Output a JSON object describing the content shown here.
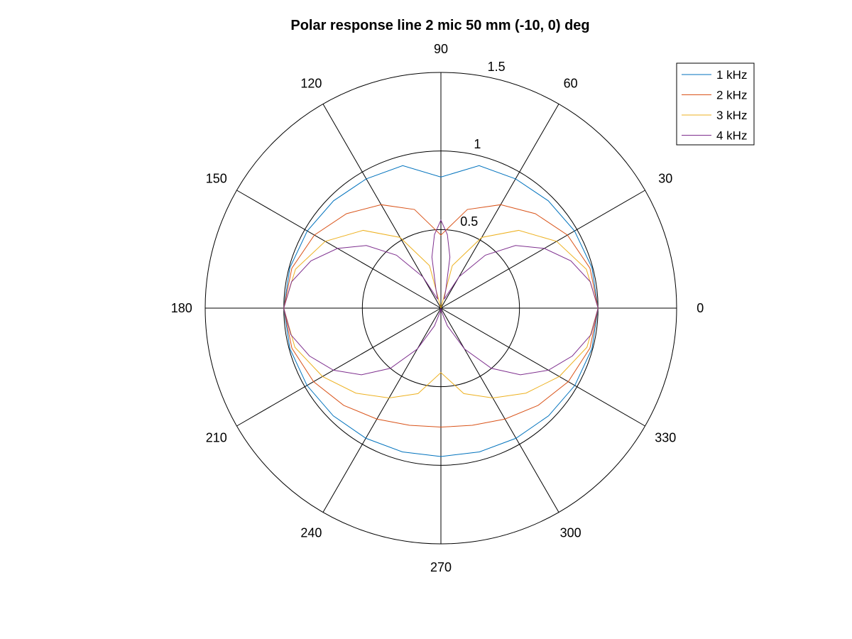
{
  "chart_data": {
    "type": "polar-line",
    "title": "Polar response line 2 mic 50 mm (-10, 0) deg",
    "theta_ticks": [
      0,
      30,
      60,
      90,
      120,
      150,
      180,
      210,
      240,
      270,
      300,
      330
    ],
    "theta_tick_labels": [
      "0",
      "30",
      "60",
      "90",
      "120",
      "150",
      "180",
      "210",
      "240",
      "270",
      "300",
      "330"
    ],
    "rlim": [
      0,
      1.5
    ],
    "r_ticks": [
      0.5,
      1,
      1.5
    ],
    "r_tick_labels": [
      "0.5",
      "1",
      "1.5"
    ],
    "r_tick_angle_deg": 80,
    "grid": true,
    "legend_position": "top-right",
    "theta_unit": "deg",
    "series": [
      {
        "name": "1 kHz",
        "color": "#0072bd",
        "theta": [
          0,
          15,
          30,
          45,
          60,
          75,
          90,
          105,
          120,
          135,
          150,
          165,
          180,
          195,
          210,
          225,
          240,
          255,
          270,
          285,
          300,
          315,
          330,
          345,
          360
        ],
        "r": [
          1.0,
          0.995,
          0.982,
          0.966,
          0.95,
          0.939,
          0.834,
          0.939,
          0.95,
          0.966,
          0.982,
          0.995,
          1.0,
          0.995,
          0.984,
          0.969,
          0.956,
          0.947,
          0.944,
          0.947,
          0.956,
          0.969,
          0.984,
          0.995,
          1.0
        ]
      },
      {
        "name": "2 kHz",
        "color": "#d95319",
        "theta": [
          0,
          15,
          30,
          45,
          60,
          75,
          90,
          105,
          120,
          135,
          150,
          165,
          180,
          195,
          210,
          225,
          240,
          255,
          270,
          285,
          300,
          315,
          330,
          345,
          360
        ],
        "r": [
          1.0,
          0.982,
          0.93,
          0.85,
          0.76,
          0.65,
          0.465,
          0.65,
          0.76,
          0.85,
          0.93,
          0.982,
          1.0,
          0.982,
          0.936,
          0.875,
          0.815,
          0.772,
          0.757,
          0.772,
          0.815,
          0.875,
          0.936,
          0.982,
          1.0
        ]
      },
      {
        "name": "3 kHz",
        "color": "#edb120",
        "theta": [
          0,
          15,
          30,
          45,
          60,
          75,
          90,
          105,
          120,
          135,
          150,
          165,
          180,
          195,
          210,
          225,
          240,
          255,
          270,
          285,
          300,
          315,
          330,
          345,
          360
        ],
        "r": [
          1.0,
          0.958,
          0.85,
          0.7,
          0.52,
          0.28,
          0.0,
          0.28,
          0.52,
          0.7,
          0.85,
          0.958,
          1.0,
          0.962,
          0.87,
          0.765,
          0.66,
          0.563,
          0.41,
          0.563,
          0.66,
          0.765,
          0.87,
          0.962,
          1.0
        ]
      },
      {
        "name": "4 kHz",
        "color": "#7e2f8e",
        "theta": [
          0,
          10,
          20,
          30,
          40,
          50,
          60,
          70,
          75,
          80,
          85,
          90,
          95,
          100,
          105,
          110,
          120,
          130,
          140,
          150,
          160,
          170,
          180,
          190,
          200,
          210,
          220,
          230,
          240,
          250,
          260,
          270,
          280,
          290,
          300,
          310,
          320,
          330,
          340,
          350,
          360
        ],
        "r": [
          1.0,
          0.965,
          0.88,
          0.76,
          0.62,
          0.44,
          0.23,
          0.06,
          0.12,
          0.33,
          0.47,
          0.56,
          0.47,
          0.33,
          0.12,
          0.06,
          0.23,
          0.44,
          0.62,
          0.76,
          0.88,
          0.965,
          1.0,
          0.97,
          0.89,
          0.79,
          0.66,
          0.5,
          0.3,
          0.12,
          0.02,
          0.0,
          0.02,
          0.12,
          0.3,
          0.5,
          0.66,
          0.79,
          0.89,
          0.97,
          1.0
        ]
      }
    ]
  }
}
